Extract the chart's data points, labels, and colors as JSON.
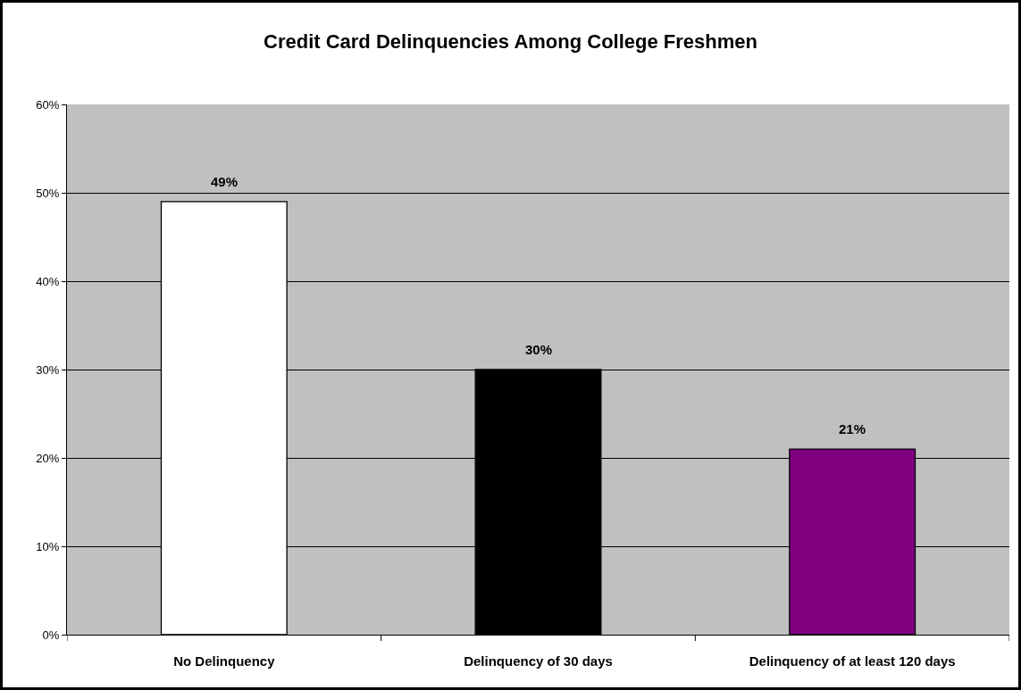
{
  "chart_data": {
    "type": "bar",
    "title": "Credit Card Delinquencies Among College Freshmen",
    "categories": [
      "No Delinquency",
      "Delinquency of 30 days",
      "Delinquency of at least 120 days"
    ],
    "values": [
      49,
      30,
      21
    ],
    "colors": [
      "#ffffff",
      "#000000",
      "#800080"
    ],
    "value_labels": [
      "49%",
      "30%",
      "21%"
    ],
    "ylim": [
      0,
      60
    ],
    "yticks": [
      {
        "value": 0,
        "label": "0%"
      },
      {
        "value": 10,
        "label": "10%"
      },
      {
        "value": 20,
        "label": "20%"
      },
      {
        "value": 30,
        "label": "30%"
      },
      {
        "value": 40,
        "label": "40%"
      },
      {
        "value": 50,
        "label": "50%"
      },
      {
        "value": 60,
        "label": "60%"
      }
    ],
    "grid": "y"
  }
}
